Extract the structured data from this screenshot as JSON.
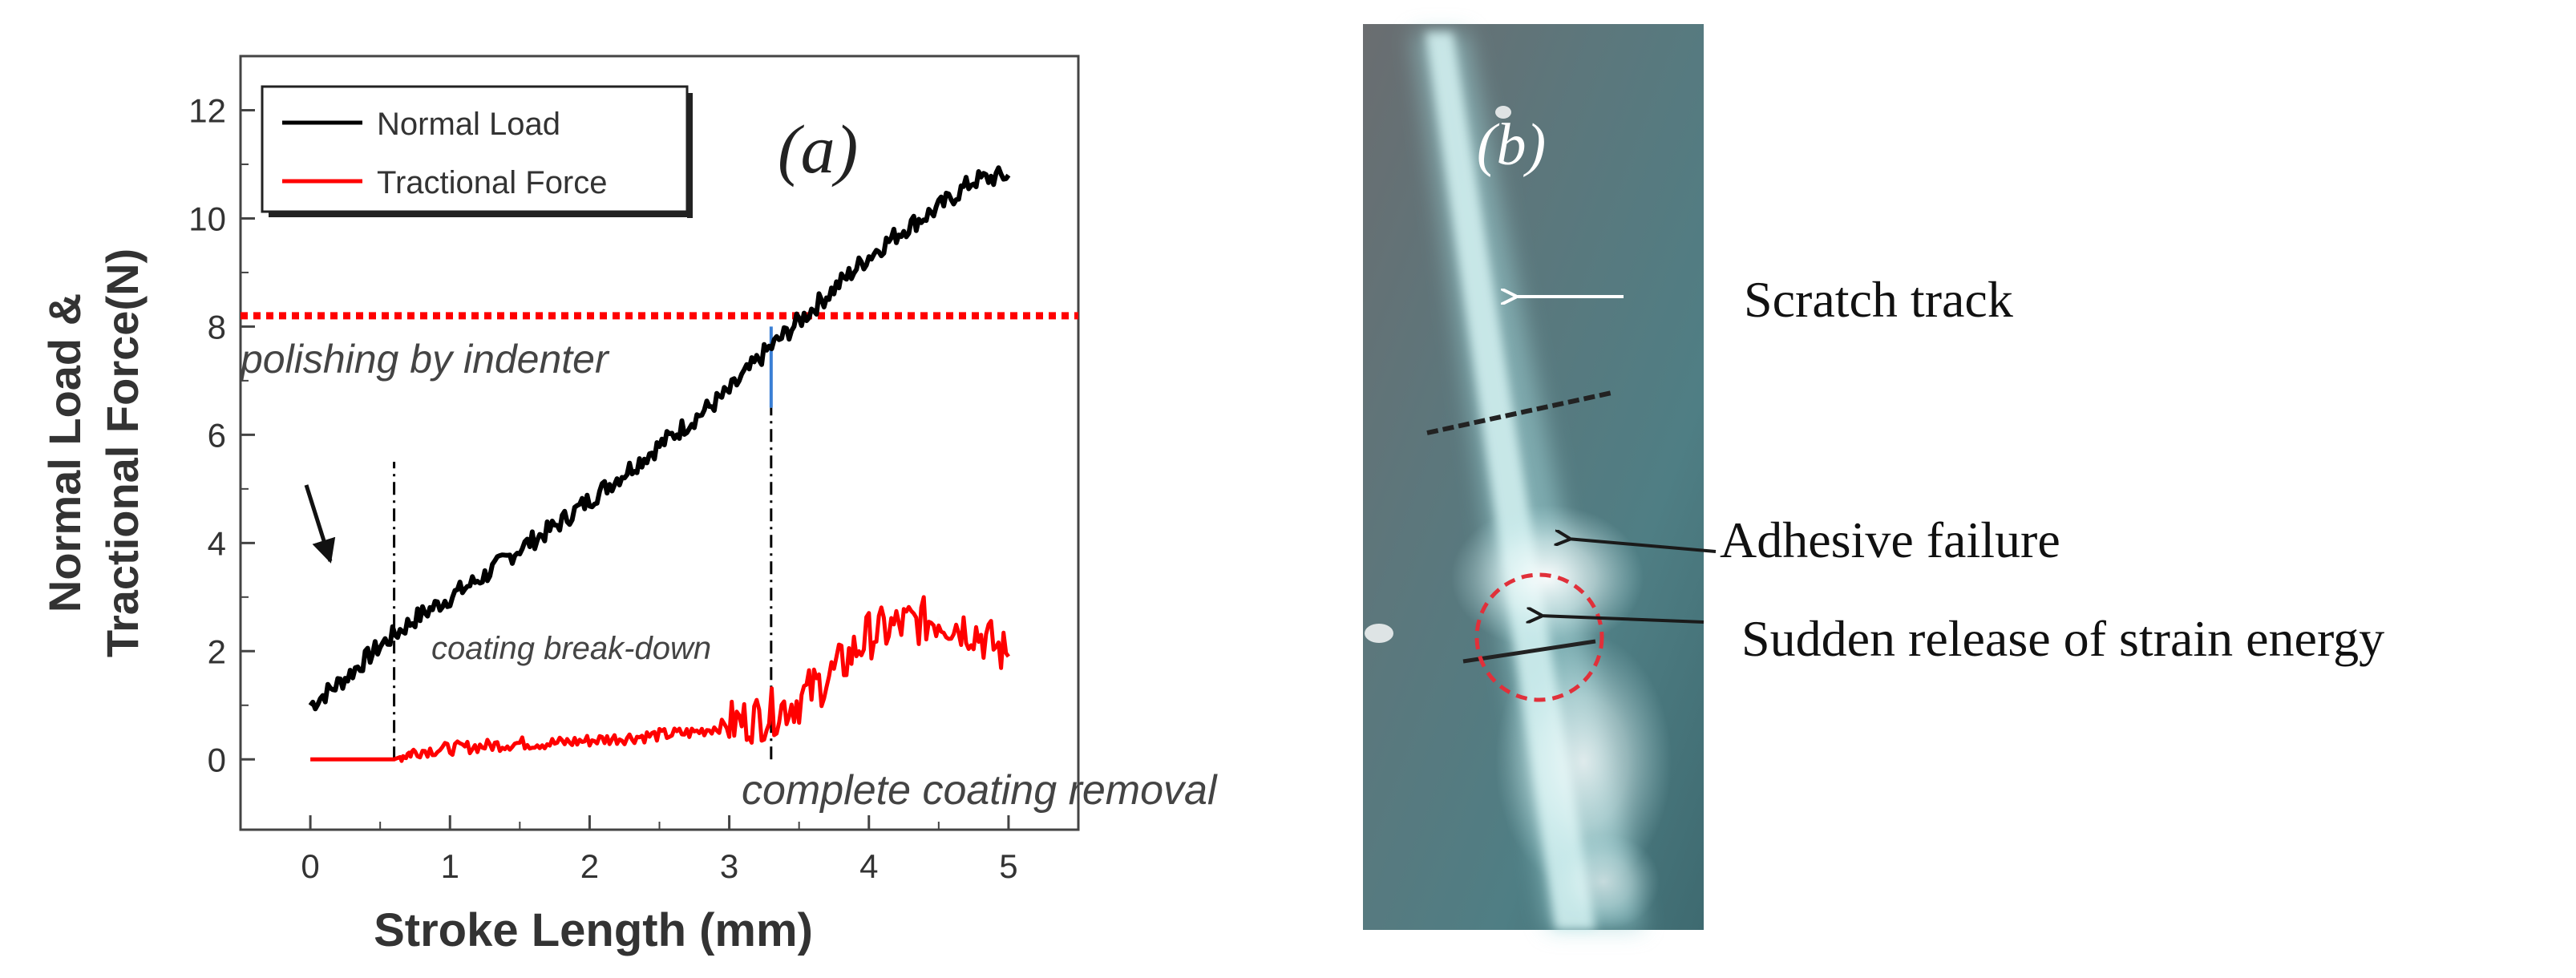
{
  "chart_data": {
    "type": "line",
    "panel_label": "(a)",
    "xlabel": "Stroke Length (mm)",
    "ylabel_line1": "Normal Load &",
    "ylabel_line2": "Tractional Force(N)",
    "xlim": [
      -0.5,
      5.5
    ],
    "ylim": [
      -1.3,
      13
    ],
    "xticks": [
      0,
      1,
      2,
      3,
      4,
      5
    ],
    "yticks": [
      0,
      2,
      4,
      6,
      8,
      10,
      12
    ],
    "grid": false,
    "legend_position": "top-left",
    "series": [
      {
        "name": "Normal Load",
        "color": "#000000",
        "x": [
          0,
          0.25,
          0.5,
          0.75,
          1.0,
          1.25,
          1.5,
          1.75,
          2.0,
          2.25,
          2.5,
          2.75,
          3.0,
          3.25,
          3.5,
          3.75,
          4.0,
          4.25,
          4.5,
          4.75,
          5.0
        ],
        "y": [
          1.0,
          1.5,
          2.1,
          2.6,
          3.0,
          3.4,
          3.9,
          4.3,
          4.8,
          5.3,
          5.8,
          6.3,
          6.8,
          7.5,
          8.1,
          8.7,
          9.3,
          9.8,
          10.2,
          10.7,
          10.8
        ]
      },
      {
        "name": "Tractional Force",
        "color": "#ff0000",
        "x": [
          0,
          0.3,
          0.6,
          0.75,
          1.0,
          1.25,
          1.5,
          1.75,
          2.0,
          2.25,
          2.5,
          2.75,
          3.0,
          3.25,
          3.5,
          3.75,
          4.0,
          4.25,
          4.5,
          4.75,
          5.0
        ],
        "y": [
          0,
          0,
          0,
          0.15,
          0.2,
          0.25,
          0.3,
          0.3,
          0.35,
          0.4,
          0.45,
          0.5,
          0.65,
          0.8,
          1.1,
          1.6,
          2.3,
          2.5,
          2.6,
          2.4,
          1.9
        ]
      }
    ],
    "reference_lines": [
      {
        "orientation": "horizontal",
        "y": 8.2,
        "color": "#ff0000",
        "style": "dotted"
      },
      {
        "orientation": "vertical",
        "x": 0.6,
        "color": "#000000",
        "style": "dashdot",
        "y_range": [
          0,
          5.5
        ]
      },
      {
        "orientation": "vertical",
        "x": 3.3,
        "color": "#000000",
        "style": "dashdot",
        "y_range": [
          0,
          6.5
        ]
      },
      {
        "orientation": "vertical",
        "x": 3.3,
        "color": "#3a7fd5",
        "style": "solid",
        "y_range": [
          6.5,
          8.0
        ]
      }
    ],
    "annotations": {
      "polishing": "polishing by indenter",
      "breakdown": "coating break-down",
      "removal": "complete coating removal"
    }
  },
  "photo": {
    "panel_label": "(b)",
    "colors": {
      "background": "#5b7278",
      "track": "#bfe8ea"
    },
    "labels": {
      "scratch_track": "Scratch track",
      "adhesive_failure": "Adhesive failure",
      "sudden_release": "Sudden release of strain energy"
    }
  }
}
